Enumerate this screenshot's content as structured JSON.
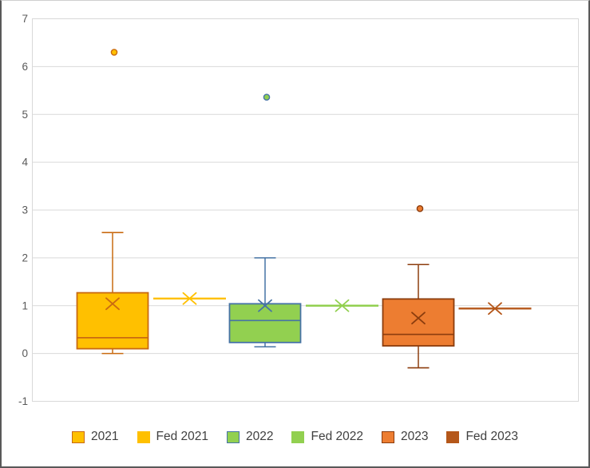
{
  "chart_data": {
    "type": "boxplot",
    "title": "",
    "xlabel": "",
    "ylabel": "",
    "legend_position": "bottom",
    "y_axis": {
      "range": [
        -1,
        7
      ],
      "ticks": [
        7,
        6,
        5,
        4,
        3,
        2,
        1,
        0,
        -1
      ],
      "gridlines": true
    },
    "series": [
      {
        "name": "2021",
        "type": "box",
        "fill": "#FFC000",
        "stroke": "#C96A11",
        "min": 0.0,
        "q1": 0.1,
        "median": 0.33,
        "q3": 1.27,
        "max": 2.53,
        "mean": 1.04,
        "outliers": [
          6.3
        ]
      },
      {
        "name": "Fed 2021",
        "type": "value-line",
        "color": "#FFC000",
        "value": 1.15
      },
      {
        "name": "2022",
        "type": "box",
        "fill": "#92D050",
        "stroke": "#4673A5",
        "min": 0.14,
        "q1": 0.23,
        "median": 0.69,
        "q3": 1.04,
        "max": 2.0,
        "mean": 1.0,
        "outliers": [
          5.36
        ]
      },
      {
        "name": "Fed 2022",
        "type": "value-line",
        "color": "#92D050",
        "value": 1.0
      },
      {
        "name": "2023",
        "type": "box",
        "fill": "#ED7D31",
        "stroke": "#8C3D0E",
        "min": -0.3,
        "q1": 0.16,
        "median": 0.4,
        "q3": 1.14,
        "max": 1.86,
        "mean": 0.74,
        "outliers": [
          3.03
        ]
      },
      {
        "name": "Fed 2023",
        "type": "value-line",
        "color": "#B5571A",
        "value": 0.94
      }
    ]
  },
  "colors": {
    "grid": "#D9D9D9",
    "plot_border": "#D9D9D9",
    "axis_text": "#595959",
    "legend_text": "#404040",
    "background": "#FFFFFF"
  }
}
